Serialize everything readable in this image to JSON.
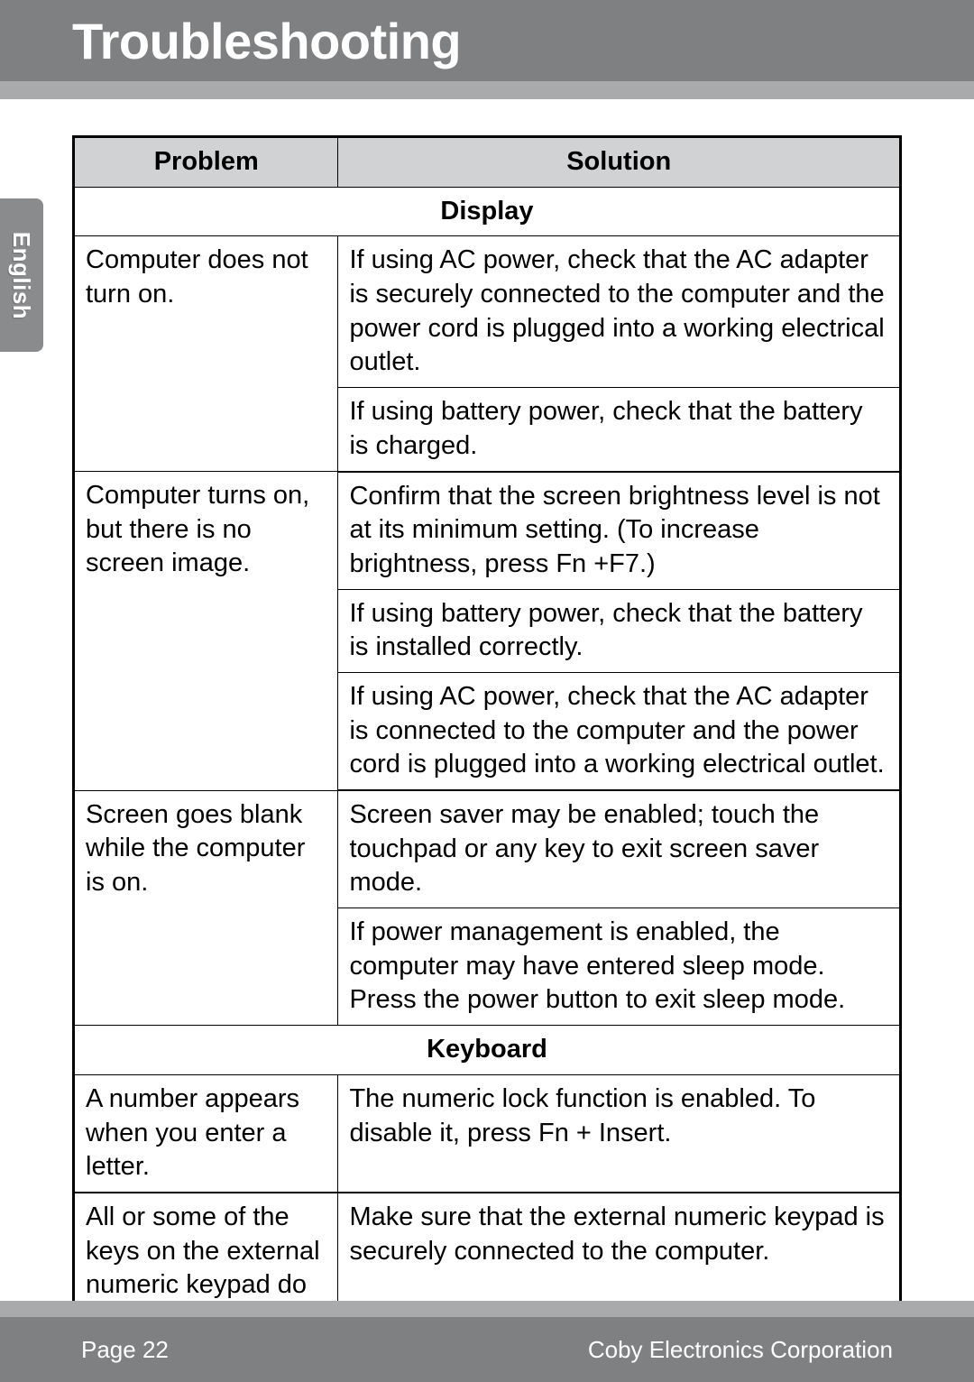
{
  "header": {
    "title": "Troubleshooting"
  },
  "sideTab": {
    "label": "English"
  },
  "table": {
    "headers": {
      "problem": "Problem",
      "solution": "Solution"
    },
    "sections": {
      "display": "Display",
      "keyboard": "Keyboard"
    },
    "rows": {
      "r1p": "Computer does not turn on.",
      "r1s": "If using AC power, check that the AC adapter is securely connected to the computer and the power cord is plugged into a working electrical outlet.",
      "r2s": "If using battery power, check that the battery is charged.",
      "r3p": "Computer turns on, but there is no screen image.",
      "r3s": "Confirm that the screen brightness level is not at its minimum setting. (To increase brightness, press Fn +F7.)",
      "r4s": "If using battery power, check that the battery is installed correctly.",
      "r5s": "If using AC power, check that the AC adapter is connected to the computer and the power cord is plugged into a working electrical outlet.",
      "r6p": "Screen goes blank while the computer is on.",
      "r6s": "Screen saver may be enabled; touch the touchpad or any key to exit screen saver mode.",
      "r7s": "If power management is enabled, the computer may have entered sleep mode. Press the power button to exit sleep mode.",
      "r8p": "A number appears when you enter a letter.",
      "r8s": "The numeric lock function is enabled. To disable it, press Fn + Insert.",
      "r9p": "All or some of the keys on the external numeric keypad do not work.",
      "r9s": "Make sure that the external numeric keypad is securely connected to the computer."
    }
  },
  "footer": {
    "page": "Page 22",
    "company": "Coby Electronics Corporation"
  },
  "colors": {
    "bandGray": "#7f8082",
    "stripGray": "#a9aaac",
    "headerCellBg": "#d0d2d4",
    "border": "#000000",
    "white": "#ffffff"
  }
}
